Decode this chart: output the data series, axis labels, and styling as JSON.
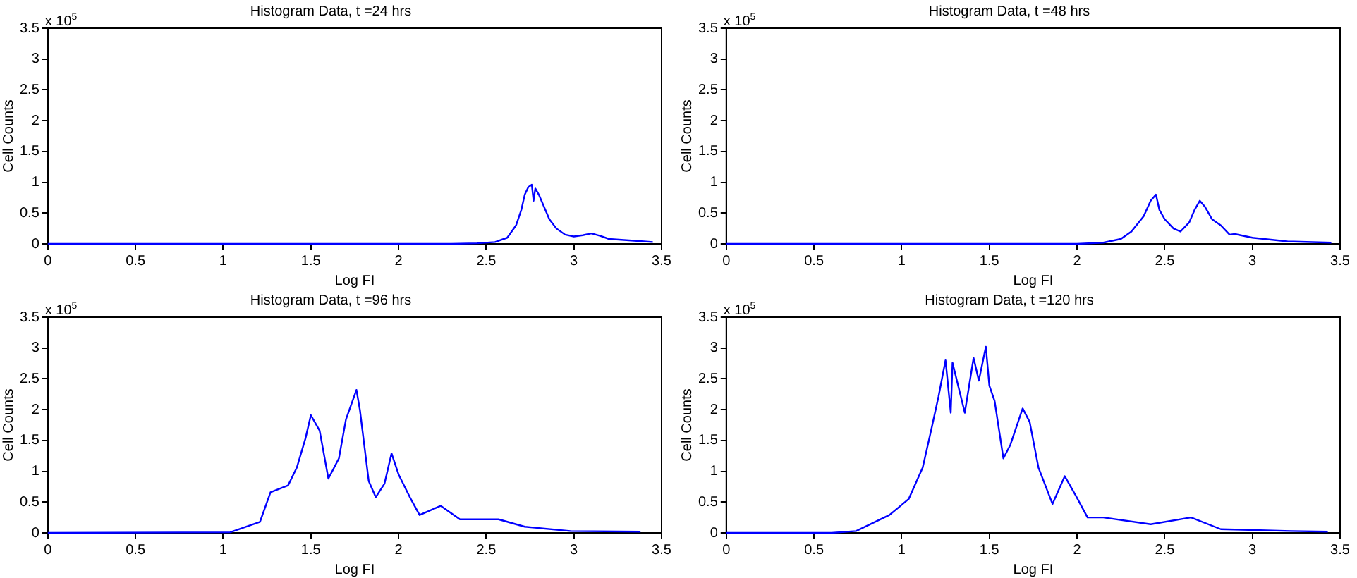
{
  "chart_data": [
    {
      "type": "line",
      "title": "Histogram Data, t =24 hrs",
      "xlabel": "Log FI",
      "ylabel": "Cell Counts",
      "annotations": [
        "x 10$^{5}$"
      ],
      "xlim": [
        0,
        3.5
      ],
      "xticks": [
        0,
        0.5,
        1,
        1.5,
        2,
        2.5,
        3,
        3.5
      ],
      "ylim": [
        0,
        3.5
      ],
      "yticks": [
        0,
        0.5,
        1,
        1.5,
        2,
        2.5,
        3,
        3.5
      ],
      "grid": false,
      "legend": false,
      "series": [
        {
          "color": "#0000ff",
          "x": [
            0,
            2.3,
            2.45,
            2.55,
            2.62,
            2.67,
            2.7,
            2.72,
            2.74,
            2.76,
            2.77,
            2.78,
            2.8,
            2.83,
            2.86,
            2.9,
            2.95,
            3.0,
            3.05,
            3.1,
            3.15,
            3.2,
            3.3,
            3.4,
            3.45
          ],
          "values": [
            0,
            0,
            0.01,
            0.03,
            0.1,
            0.3,
            0.55,
            0.8,
            0.92,
            0.96,
            0.7,
            0.9,
            0.8,
            0.6,
            0.4,
            0.25,
            0.15,
            0.12,
            0.14,
            0.17,
            0.13,
            0.08,
            0.06,
            0.04,
            0.03
          ]
        }
      ]
    },
    {
      "type": "line",
      "title": "Histogram Data, t =48 hrs",
      "xlabel": "Log FI",
      "ylabel": "Cell Counts",
      "annotations": [
        "x 10$^{5}$"
      ],
      "xlim": [
        0,
        3.5
      ],
      "xticks": [
        0,
        0.5,
        1,
        1.5,
        2,
        2.5,
        3,
        3.5
      ],
      "ylim": [
        0,
        3.5
      ],
      "yticks": [
        0,
        0.5,
        1,
        1.5,
        2,
        2.5,
        3,
        3.5
      ],
      "grid": false,
      "legend": false,
      "series": [
        {
          "color": "#0000ff",
          "x": [
            0,
            2.0,
            2.15,
            2.25,
            2.31,
            2.38,
            2.42,
            2.45,
            2.47,
            2.5,
            2.55,
            2.59,
            2.64,
            2.67,
            2.7,
            2.73,
            2.77,
            2.82,
            2.87,
            2.9,
            3.0,
            3.2,
            3.45
          ],
          "values": [
            0,
            0,
            0.02,
            0.08,
            0.2,
            0.45,
            0.7,
            0.8,
            0.55,
            0.4,
            0.25,
            0.2,
            0.35,
            0.55,
            0.7,
            0.6,
            0.4,
            0.3,
            0.15,
            0.16,
            0.1,
            0.04,
            0.02
          ]
        }
      ]
    },
    {
      "type": "line",
      "title": "Histogram Data, t =96 hrs",
      "xlabel": "Log FI",
      "ylabel": "Cell Counts",
      "annotations": [
        "x 10$^{5}$"
      ],
      "xlim": [
        0,
        3.5
      ],
      "xticks": [
        0,
        0.5,
        1,
        1.5,
        2,
        2.5,
        3,
        3.5
      ],
      "ylim": [
        0,
        3.5
      ],
      "yticks": [
        0,
        0.5,
        1,
        1.5,
        2,
        2.5,
        3,
        3.5
      ],
      "grid": false,
      "legend": false,
      "series": [
        {
          "color": "#0000ff",
          "x": [
            0,
            1.04,
            1.21,
            1.27,
            1.37,
            1.42,
            1.47,
            1.5,
            1.55,
            1.6,
            1.66,
            1.7,
            1.76,
            1.78,
            1.83,
            1.87,
            1.92,
            1.96,
            2.0,
            2.07,
            2.12,
            2.24,
            2.35,
            2.57,
            2.72,
            2.98,
            3.38
          ],
          "values": [
            0,
            0.01,
            0.18,
            0.66,
            0.77,
            1.06,
            1.54,
            1.91,
            1.66,
            0.88,
            1.21,
            1.84,
            2.32,
            1.99,
            0.84,
            0.58,
            0.8,
            1.29,
            0.95,
            0.55,
            0.29,
            0.44,
            0.22,
            0.22,
            0.1,
            0.03,
            0.02
          ]
        }
      ]
    },
    {
      "type": "line",
      "title": "Histogram Data, t =120 hrs",
      "xlabel": "Log FI",
      "ylabel": "Cell Counts",
      "annotations": [
        "x 10$^{5}$"
      ],
      "xlim": [
        0,
        3.5
      ],
      "xticks": [
        0,
        0.5,
        1,
        1.5,
        2,
        2.5,
        3,
        3.5
      ],
      "ylim": [
        0,
        3.5
      ],
      "yticks": [
        0,
        0.5,
        1,
        1.5,
        2,
        2.5,
        3,
        3.5
      ],
      "grid": false,
      "legend": false,
      "series": [
        {
          "color": "#0000ff",
          "x": [
            0,
            0.6,
            0.74,
            0.93,
            1.04,
            1.12,
            1.17,
            1.21,
            1.25,
            1.28,
            1.29,
            1.36,
            1.41,
            1.44,
            1.48,
            1.5,
            1.53,
            1.58,
            1.62,
            1.69,
            1.73,
            1.78,
            1.86,
            1.93,
            1.99,
            2.06,
            2.15,
            2.42,
            2.65,
            2.82,
            3.22,
            3.43
          ],
          "values": [
            0,
            0,
            0.03,
            0.29,
            0.55,
            1.06,
            1.69,
            2.21,
            2.8,
            1.95,
            2.76,
            1.95,
            2.84,
            2.47,
            3.02,
            2.39,
            2.14,
            1.21,
            1.43,
            2.02,
            1.8,
            1.06,
            0.47,
            0.92,
            0.62,
            0.25,
            0.25,
            0.14,
            0.25,
            0.06,
            0.03,
            0.02
          ]
        }
      ]
    }
  ]
}
